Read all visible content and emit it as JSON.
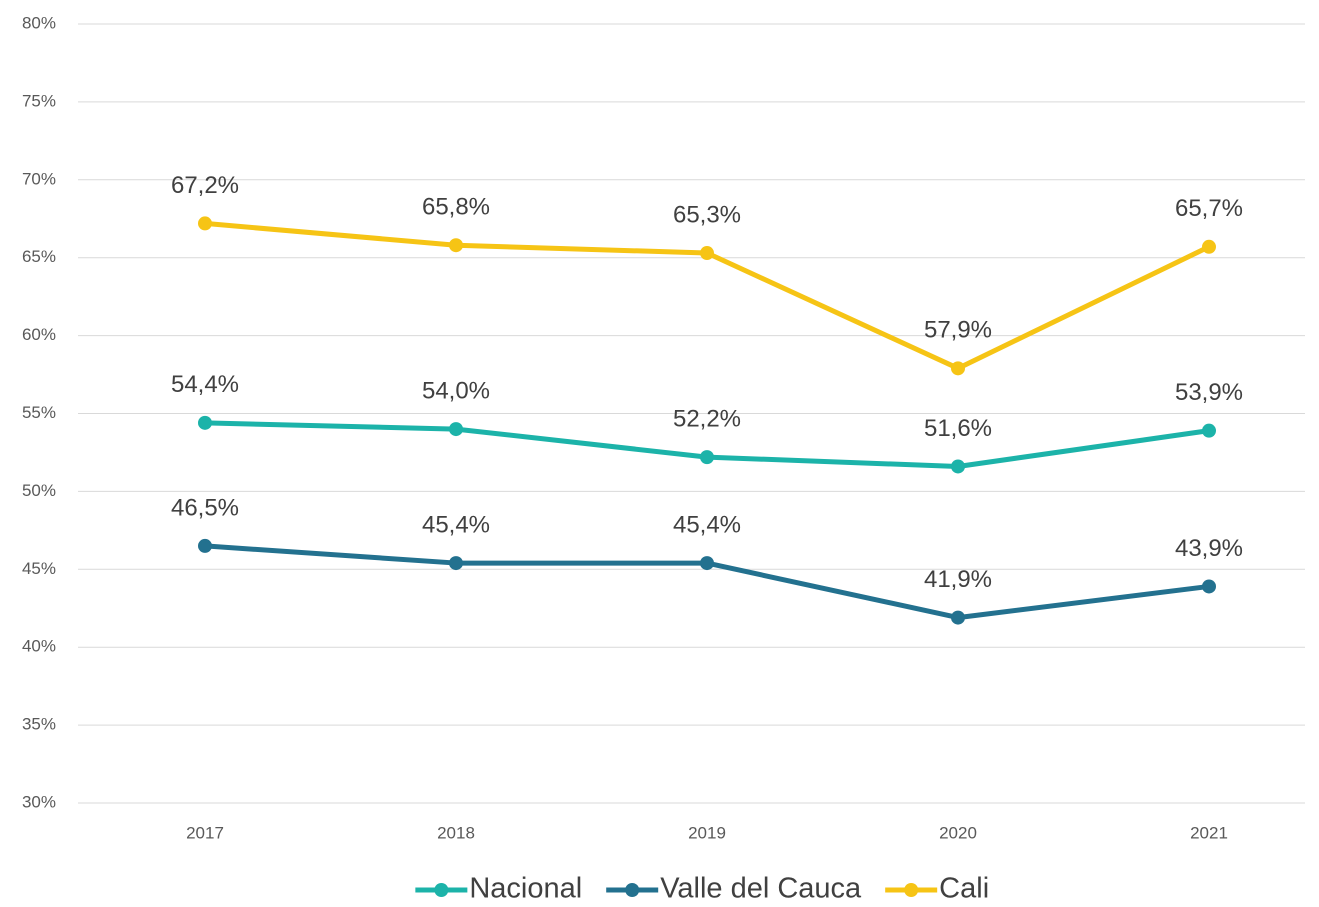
{
  "chart_data": {
    "type": "line",
    "categories": [
      "2017",
      "2018",
      "2019",
      "2020",
      "2021"
    ],
    "series": [
      {
        "name": "Nacional",
        "color": "#1cb3a9",
        "values": [
          54.4,
          54.0,
          52.2,
          51.6,
          53.9
        ],
        "value_labels": [
          "54,4%",
          "54,0%",
          "52,2%",
          "51,6%",
          "53,9%"
        ]
      },
      {
        "name": "Valle del Cauca",
        "color": "#23718f",
        "values": [
          46.5,
          45.4,
          45.4,
          41.9,
          43.9
        ],
        "value_labels": [
          "46,5%",
          "45,4%",
          "45,4%",
          "41,9%",
          "43,9%"
        ]
      },
      {
        "name": "Cali",
        "color": "#f6c415",
        "values": [
          67.2,
          65.8,
          65.3,
          57.9,
          65.7
        ],
        "value_labels": [
          "67,2%",
          "65,8%",
          "65,3%",
          "57,9%",
          "65,7%"
        ]
      }
    ],
    "ylim": [
      30,
      80
    ],
    "yticks": [
      {
        "value": 30,
        "label": "30%"
      },
      {
        "value": 35,
        "label": "35%"
      },
      {
        "value": 40,
        "label": "40%"
      },
      {
        "value": 45,
        "label": "45%"
      },
      {
        "value": 50,
        "label": "50%"
      },
      {
        "value": 55,
        "label": "55%"
      },
      {
        "value": 60,
        "label": "60%"
      },
      {
        "value": 65,
        "label": "65%"
      },
      {
        "value": 70,
        "label": "70%"
      },
      {
        "value": 75,
        "label": "75%"
      },
      {
        "value": 80,
        "label": "80%"
      }
    ],
    "grid": true,
    "legend": "bottom"
  }
}
